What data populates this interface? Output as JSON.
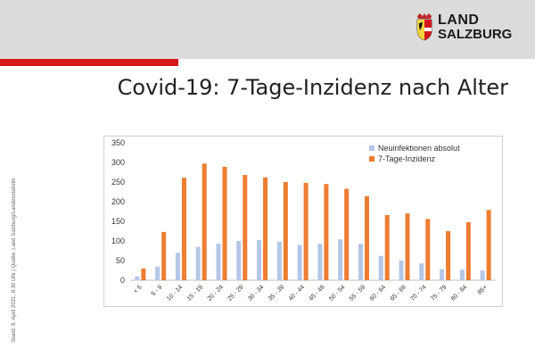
{
  "header": {
    "logo": {
      "line1": "LAND",
      "line2": "SALZBURG",
      "icon": "salzburg-coat-of-arms-icon"
    },
    "accent_color": "#d5171c"
  },
  "slide": {
    "title": "Covid-19: 7-Tage-Inzidenz nach Alter",
    "side_note": "Stand: 8. April 2021, 8.30 Uhr | Quelle: Land Salzburg/Landesstatistik"
  },
  "chart_data": {
    "type": "bar",
    "categories": [
      "< 5",
      "5 - 9",
      "10 - 14",
      "15 - 19",
      "20 - 24",
      "25 - 29",
      "30 - 34",
      "35 - 39",
      "40 - 44",
      "45 - 49",
      "50 - 54",
      "55 - 59",
      "60 - 64",
      "65 - 69",
      "70 - 74",
      "75 - 79",
      "80 - 84",
      "85+"
    ],
    "series": [
      {
        "name": "Neuinfektionen absolut",
        "color": "#b4c7e7",
        "values": [
          10,
          35,
          70,
          85,
          93,
          100,
          102,
          98,
          90,
          93,
          104,
          93,
          62,
          50,
          43,
          28,
          27,
          25
        ]
      },
      {
        "name": "7-Tage-Inzidenz",
        "color": "#ed7d31",
        "values": [
          30,
          123,
          261,
          297,
          289,
          268,
          262,
          250,
          248,
          245,
          233,
          214,
          166,
          170,
          156,
          125,
          148,
          179
        ]
      }
    ],
    "ylim": [
      0,
      350
    ],
    "yticks": [
      0,
      50,
      100,
      150,
      200,
      250,
      300,
      350
    ],
    "grid": false,
    "legend": "top-right",
    "title": "",
    "xlabel": "",
    "ylabel": ""
  }
}
